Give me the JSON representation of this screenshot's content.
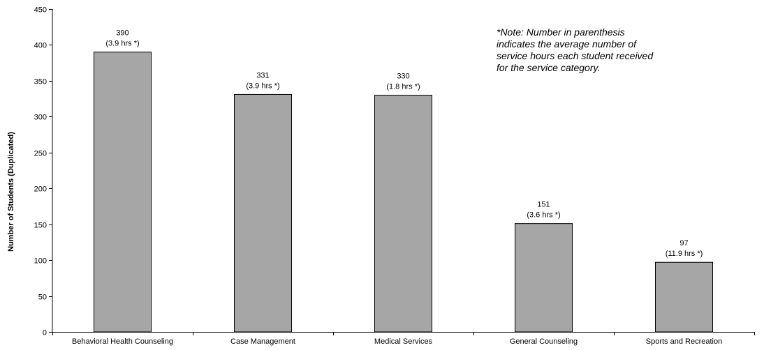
{
  "chart_data": {
    "type": "bar",
    "title": "",
    "xlabel": "",
    "ylabel": "Number of Students (Duplicated)",
    "ylim": [
      0,
      450
    ],
    "yticks": [
      0,
      50,
      100,
      150,
      200,
      250,
      300,
      350,
      400,
      450
    ],
    "grid": false,
    "legend": "none",
    "bar_color": "#a6a6a6",
    "categories": [
      "Behavioral Health Counseling",
      "Case Management",
      "Medical Services",
      "General Counseling",
      "Sports and Recreation"
    ],
    "values": [
      390,
      331,
      330,
      151,
      97
    ],
    "value_labels": [
      "390",
      "331",
      "330",
      "151",
      "97"
    ],
    "hours_labels": [
      "(3.9 hrs *)",
      "(3.9 hrs *)",
      "(1.8 hrs *)",
      "(3.6 hrs *)",
      "(11.9 hrs *)"
    ],
    "annotation": [
      "*Note: Number in parenthesis",
      "indicates the average number of",
      "service hours each student received",
      "for the service category."
    ]
  }
}
